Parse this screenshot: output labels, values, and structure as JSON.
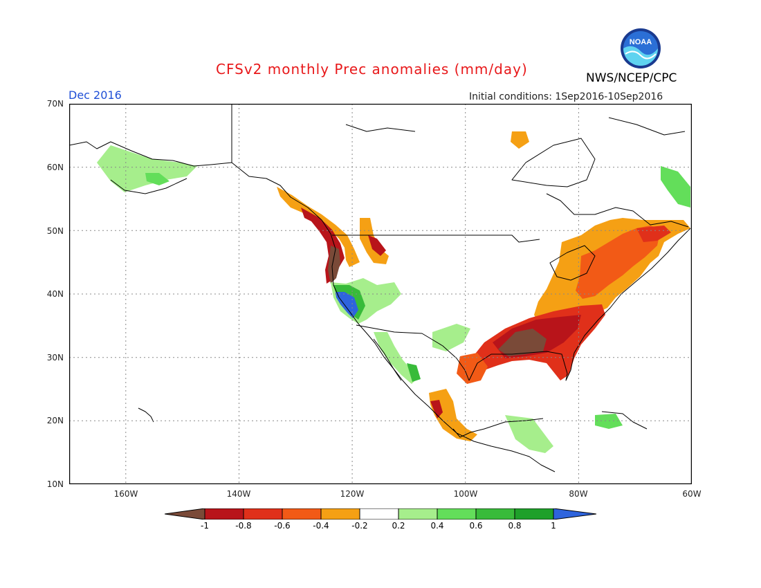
{
  "header": {
    "title": "CFSv2 monthly Prec anomalies (mm/day)",
    "month": "Dec 2016",
    "initial_conditions": "Initial conditions: 1Sep2016-10Sep2016",
    "agency": "NWS/NCEP/CPC",
    "logo_text": "NOAA"
  },
  "map": {
    "region": "North America",
    "lon_range": [
      -170,
      -60
    ],
    "lat_range": [
      10,
      70
    ],
    "lat_labels": [
      "70N",
      "60N",
      "50N",
      "40N",
      "30N",
      "20N",
      "10N"
    ],
    "lon_labels": [
      "160W",
      "140W",
      "120W",
      "100W",
      "80W",
      "60W"
    ],
    "grid": true,
    "colors": {
      "below_-1": "#7a4a38",
      "-1_-0.8": "#b8141a",
      "-0.8_-0.6": "#e0301a",
      "-0.6_-0.4": "#f25a16",
      "-0.4_-0.2": "#f5a014",
      "0.2_0.4": "#a6ee8c",
      "0.4_0.6": "#63de5a",
      "0.6_0.8": "#38bb3a",
      "0.8_1": "#1ea02a",
      "above_1": "#2e64dd"
    }
  },
  "colorbar": {
    "labels": [
      "-1",
      "-0.8",
      "-0.6",
      "-0.4",
      "-0.2",
      "0.2",
      "0.4",
      "0.6",
      "0.8",
      "1"
    ],
    "colors": [
      "#7a4a38",
      "#b8141a",
      "#e0301a",
      "#f25a16",
      "#f5a014",
      "#ffffff",
      "#a6ee8c",
      "#63de5a",
      "#38bb3a",
      "#1ea02a",
      "#2e64dd"
    ]
  }
}
